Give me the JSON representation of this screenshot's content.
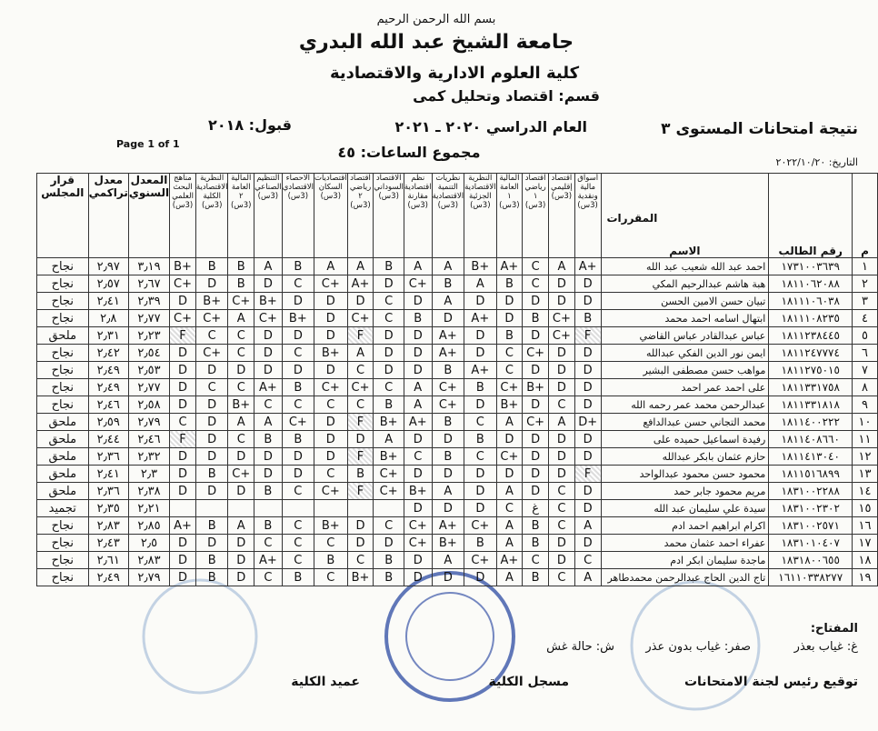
{
  "header": {
    "basmala": "بسم الله الرحمن الرحيم",
    "university": "جامعة الشيخ عبد الله البدري",
    "college": "كلية العلوم الادارية والاقتصادية",
    "department": "قسم: اقتصاد وتحليل كمى",
    "exam_title": "نتيجة امتحانات المستوى ٣",
    "academic_year": "العام الدراسي ٢٠٢٠ ـ ٢٠٢١",
    "admission": "قبول: ٢٠١٨",
    "page": "Page 1 of 1",
    "total_hours": "مجموع الساعات: ٤٥",
    "date": "التاريخ: ٢٠٢٢/١٠/٢٠"
  },
  "table": {
    "columns": {
      "decision": "قرار المجلس",
      "cumulative": "معدل تراكمي",
      "annual": "المعدل السنوي",
      "courses_label": "المقررات",
      "name": "الاسم",
      "id": "رقم الطالب",
      "no": "م"
    },
    "courses": [
      "مناهج البحث العلمي (3س)",
      "النظرية الاقتصادية الكلية (3س)",
      "المالية العامة ٢ (3س)",
      "التنظيم الصناعي (3س)",
      "الاحصاء الاقتصادي (3س)",
      "اقتصاديات السكان (3س)",
      "اقتصاد رياضي ٢ (3س)",
      "الاقتصاد السوداني (3س)",
      "نظم اقتصادية مقارنة (3س)",
      "نظريات التنمية الاقتصادية (3س)",
      "النظرية الاقتصادية الجزئية (3س)",
      "المالية العامة ١ (3س)",
      "اقتصاد رياضي ١ (3س)",
      "اقتصاد إقليمي (3س)",
      "أسواق مالية ونقدية (3س)"
    ],
    "rows": [
      {
        "decision": "نجاح",
        "cumulative": "٢٫٩٧",
        "annual": "٣٫١٩",
        "grades": [
          "B+",
          "B",
          "B",
          "A",
          "B",
          "A",
          "A",
          "B",
          "A",
          "A",
          "B+",
          "A+",
          "C",
          "A",
          "A+"
        ],
        "name": "احمد عبد الله شعيب عبد الله",
        "id": "١٧٣١٠٠٣٦٣٩",
        "no": "١"
      },
      {
        "decision": "نجاح",
        "cumulative": "٢٫٥٧",
        "annual": "٢٫٦٧",
        "grades": [
          "C+",
          "D",
          "B",
          "D",
          "C",
          "C+",
          "A+",
          "D",
          "C+",
          "B",
          "A",
          "B",
          "C",
          "D",
          "D"
        ],
        "name": "هبة هاشم عبدالرحيم المكي",
        "id": "١٨١١٠٦٢٠٨٨",
        "no": "٢"
      },
      {
        "decision": "نجاح",
        "cumulative": "٢٫٤١",
        "annual": "٢٫٣٩",
        "grades": [
          "D",
          "B+",
          "C+",
          "B+",
          "D",
          "D",
          "D",
          "C",
          "D",
          "A",
          "D",
          "D",
          "D",
          "D",
          "D"
        ],
        "name": "تبيان حسن الامين الحسن",
        "id": "١٨١١١٠٦٠٣٨",
        "no": "٣"
      },
      {
        "decision": "نجاح",
        "cumulative": "٢٫٨",
        "annual": "٢٫٧٧",
        "grades": [
          "C+",
          "C+",
          "A",
          "C+",
          "B+",
          "D",
          "C+",
          "C",
          "B",
          "D",
          "A+",
          "D",
          "B",
          "C+",
          "B"
        ],
        "name": "ابتهال اسامه احمد محمد",
        "id": "١٨١١١٠٨٢٣٥",
        "no": "٤"
      },
      {
        "decision": "ملحق",
        "cumulative": "٢٫٣١",
        "annual": "٢٫٢٣",
        "grades": [
          "F",
          "C",
          "C",
          "D",
          "D",
          "D",
          "F",
          "D",
          "D",
          "A+",
          "D",
          "B",
          "D",
          "C+",
          "F"
        ],
        "name": "عباس عبدالقادر عباس القاضي",
        "id": "١٨١١٢٣٨٤٤٥",
        "no": "٥"
      },
      {
        "decision": "نجاح",
        "cumulative": "٢٫٤٢",
        "annual": "٢٫٥٤",
        "grades": [
          "D",
          "C+",
          "C",
          "D",
          "C",
          "B+",
          "A",
          "D",
          "D",
          "A+",
          "D",
          "C",
          "C+",
          "D",
          "D"
        ],
        "name": "ايمن نور الدين الفكي عبدالله",
        "id": "١٨١١٢٤٧٧٧٤",
        "no": "٦"
      },
      {
        "decision": "نجاح",
        "cumulative": "٢٫٤٩",
        "annual": "٢٫٥٣",
        "grades": [
          "D",
          "D",
          "D",
          "D",
          "D",
          "D",
          "C",
          "D",
          "D",
          "B",
          "A+",
          "C",
          "D",
          "D",
          "D"
        ],
        "name": "مواهب حسن مصطفى البشير",
        "id": "١٨١١٢٧٥٠١٥",
        "no": "٧"
      },
      {
        "decision": "نجاح",
        "cumulative": "٢٫٤٩",
        "annual": "٢٫٧٧",
        "grades": [
          "D",
          "C",
          "C",
          "A+",
          "B",
          "C+",
          "C+",
          "C",
          "A",
          "C+",
          "B",
          "C+",
          "B+",
          "D",
          "D"
        ],
        "name": "على احمد عمر احمد",
        "id": "١٨١١٣٣١٧٥٨",
        "no": "٨"
      },
      {
        "decision": "نجاح",
        "cumulative": "٢٫٤٦",
        "annual": "٢٫٥٨",
        "grades": [
          "D",
          "D",
          "B+",
          "C",
          "C",
          "C",
          "C",
          "B",
          "A",
          "C+",
          "D",
          "B+",
          "D",
          "C",
          "D"
        ],
        "name": "عبدالرحمن محمد عمر رحمه الله",
        "id": "١٨١١٣٣١٨١٨",
        "no": "٩"
      },
      {
        "decision": "ملحق",
        "cumulative": "٢٫٥٩",
        "annual": "٢٫٧٩",
        "grades": [
          "C",
          "D",
          "A",
          "A",
          "C+",
          "D",
          "F",
          "B+",
          "A+",
          "B",
          "C",
          "A",
          "C+",
          "A",
          "D+"
        ],
        "name": "محمد التجاني حسن عبدالدافع",
        "id": "١٨١١٤٠٠٢٢٢",
        "no": "١٠"
      },
      {
        "decision": "ملحق",
        "cumulative": "٢٫٤٤",
        "annual": "٢٫٤٦",
        "grades": [
          "F",
          "D",
          "C",
          "B",
          "B",
          "D",
          "D",
          "A",
          "D",
          "D",
          "B",
          "D",
          "D",
          "D",
          "D"
        ],
        "name": "رفيدة اسماعيل حميده على",
        "id": "١٨١١٤٠٨٦٦٠",
        "no": "١١"
      },
      {
        "decision": "ملحق",
        "cumulative": "٢٫٣٦",
        "annual": "٢٫٣٢",
        "grades": [
          "D",
          "D",
          "D",
          "D",
          "D",
          "D",
          "F",
          "B+",
          "C",
          "B",
          "C",
          "C+",
          "D",
          "D",
          "D"
        ],
        "name": "حازم عثمان بابكر عبدالله",
        "id": "١٨١١٤١٣٠٤٠",
        "no": "١٢"
      },
      {
        "decision": "ملحق",
        "cumulative": "٢٫٤١",
        "annual": "٢٫٣",
        "grades": [
          "D",
          "B",
          "C+",
          "D",
          "D",
          "C",
          "B",
          "C+",
          "D",
          "D",
          "D",
          "D",
          "D",
          "D",
          "F"
        ],
        "name": "محمود حسن محمود عبدالواحد",
        "id": "١٨١١٥١٦٨٩٩",
        "no": "١٣"
      },
      {
        "decision": "ملحق",
        "cumulative": "٢٫٣٦",
        "annual": "٢٫٣٨",
        "grades": [
          "D",
          "D",
          "D",
          "B",
          "C",
          "C+",
          "F",
          "C+",
          "B+",
          "A",
          "D",
          "A",
          "D",
          "C",
          "D"
        ],
        "name": "مريم محمود جابر حمد",
        "id": "١٨٣١٠٠٢٢٨٨",
        "no": "١٤"
      },
      {
        "decision": "تجميد",
        "cumulative": "٢٫٣٥",
        "annual": "٢٫٢١",
        "grades": [
          null,
          null,
          null,
          null,
          null,
          null,
          null,
          null,
          "D",
          "D",
          "D",
          "C",
          "غ",
          "C",
          "D"
        ],
        "name": "سيدة علي سليمان عبد الله",
        "id": "١٨٣١٠٠٢٣٠٢",
        "no": "١٥"
      },
      {
        "decision": "نجاح",
        "cumulative": "٢٫٨٣",
        "annual": "٢٫٨٥",
        "grades": [
          "A+",
          "B",
          "A",
          "B",
          "C",
          "B+",
          "D",
          "C",
          "C+",
          "A+",
          "C+",
          "A",
          "B",
          "C",
          "A"
        ],
        "name": "اكرام ابراهيم احمد ادم",
        "id": "١٨٣١٠٠٢٥٧١",
        "no": "١٦"
      },
      {
        "decision": "نجاح",
        "cumulative": "٢٫٤٣",
        "annual": "٢٫٥",
        "grades": [
          "D",
          "D",
          "D",
          "C",
          "C",
          "C",
          "D",
          "D",
          "C+",
          "B+",
          "B",
          "A",
          "B",
          "D",
          "D"
        ],
        "name": "عفراء احمد عثمان محمد",
        "id": "١٨٣١٠١٠٤٠٧",
        "no": "١٧"
      },
      {
        "decision": "نجاح",
        "cumulative": "٢٫٦١",
        "annual": "٢٫٨٣",
        "grades": [
          "D",
          "B",
          "D",
          "A+",
          "C",
          "B",
          "C",
          "B",
          "D",
          "A",
          "C+",
          "A+",
          "C",
          "D",
          "C"
        ],
        "name": "ماجدة سليمان ابكر ادم",
        "id": "١٨٣١٨٠٠٦٥٥",
        "no": "١٨"
      },
      {
        "decision": "نجاح",
        "cumulative": "٢٫٤٩",
        "annual": "٢٫٧٩",
        "grades": [
          "D",
          "B",
          "D",
          "C",
          "B",
          "C",
          "B+",
          "B",
          "D",
          "D",
          "D",
          "A",
          "B",
          "C",
          "A"
        ],
        "name": "تاج الدين الحاج عبدالرحمن محمدطاهر",
        "id": "١٦١١٠٣٣٨٢٧٧",
        "no": "١٩"
      }
    ]
  },
  "footer": {
    "key": "المفتاح:",
    "absent_excused": "غ: غياب بعذر",
    "absent_unexcused": "صفر: غياب بدون عذر",
    "cheating": "ش: حالة غش",
    "committee_signature": "توقيع رئيس لجنة الامتحانات",
    "registrar": "مسجل الكلية",
    "dean": "عميد الكلية"
  }
}
